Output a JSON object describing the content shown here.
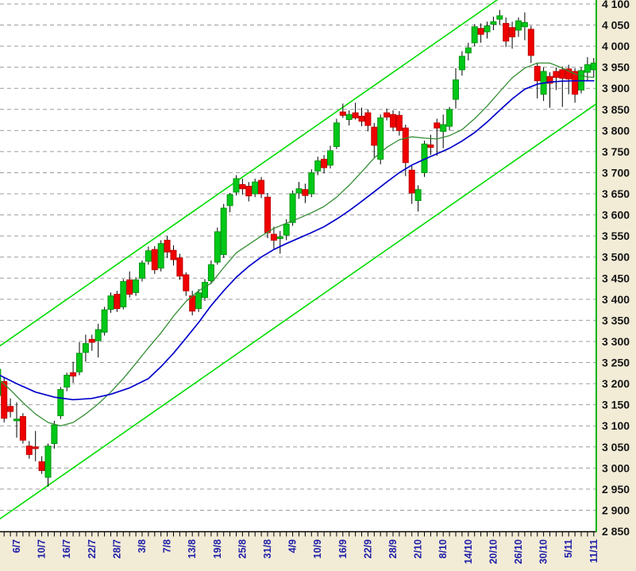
{
  "chart_data": {
    "type": "candlestick",
    "title": "",
    "legend": false,
    "grid": true,
    "y_axis": {
      "min": 2850,
      "max": 4100,
      "tick_step": 50,
      "label_format": "space_thousands",
      "side": "right"
    },
    "x_axis": {
      "labels": [
        "6/7",
        "10/7",
        "16/7",
        "22/7",
        "28/7",
        "3/8",
        "7/8",
        "13/8",
        "19/8",
        "25/8",
        "31/8",
        "4/9",
        "10/9",
        "16/9",
        "22/9",
        "28/9",
        "2/10",
        "8/10",
        "14/10",
        "20/10",
        "26/10",
        "30/10",
        "5/11",
        "11/11"
      ],
      "first_label_candle_index": 3,
      "label_every_n_candles": 4,
      "orientation": "vertical"
    },
    "candles_columns": [
      "open",
      "high",
      "low",
      "close"
    ],
    "candles": [
      [
        3172,
        3240,
        3160,
        3234
      ],
      [
        3205,
        3215,
        3108,
        3118
      ],
      [
        3146,
        3165,
        3120,
        3134
      ],
      [
        3112,
        3156,
        3072,
        3116
      ],
      [
        3122,
        3130,
        3058,
        3066
      ],
      [
        3052,
        3064,
        3022,
        3032
      ],
      [
        3050,
        3088,
        3016,
        3046
      ],
      [
        3015,
        3028,
        2986,
        2994
      ],
      [
        2978,
        3058,
        2956,
        3052
      ],
      [
        3058,
        3112,
        3046,
        3102
      ],
      [
        3124,
        3192,
        3116,
        3186
      ],
      [
        3192,
        3226,
        3182,
        3220
      ],
      [
        3226,
        3252,
        3202,
        3218
      ],
      [
        3228,
        3298,
        3220,
        3272
      ],
      [
        3274,
        3316,
        3252,
        3295
      ],
      [
        3305,
        3316,
        3278,
        3298
      ],
      [
        3302,
        3342,
        3262,
        3328
      ],
      [
        3322,
        3382,
        3314,
        3375
      ],
      [
        3376,
        3416,
        3368,
        3408
      ],
      [
        3412,
        3420,
        3370,
        3378
      ],
      [
        3382,
        3448,
        3376,
        3442
      ],
      [
        3446,
        3466,
        3404,
        3412
      ],
      [
        3416,
        3452,
        3408,
        3446
      ],
      [
        3450,
        3492,
        3442,
        3486
      ],
      [
        3490,
        3525,
        3482,
        3515
      ],
      [
        3518,
        3526,
        3460,
        3470
      ],
      [
        3474,
        3540,
        3466,
        3532
      ],
      [
        3540,
        3550,
        3498,
        3512
      ],
      [
        3516,
        3528,
        3480,
        3494
      ],
      [
        3498,
        3508,
        3446,
        3455
      ],
      [
        3458,
        3464,
        3408,
        3420
      ],
      [
        3408,
        3420,
        3362,
        3372
      ],
      [
        3378,
        3424,
        3370,
        3415
      ],
      [
        3404,
        3448,
        3396,
        3440
      ],
      [
        3444,
        3492,
        3436,
        3482
      ],
      [
        3488,
        3570,
        3482,
        3560
      ],
      [
        3506,
        3626,
        3498,
        3616
      ],
      [
        3622,
        3652,
        3606,
        3648
      ],
      [
        3654,
        3694,
        3646,
        3686
      ],
      [
        3672,
        3686,
        3648,
        3662
      ],
      [
        3668,
        3678,
        3632,
        3645
      ],
      [
        3650,
        3686,
        3642,
        3678
      ],
      [
        3682,
        3690,
        3640,
        3650
      ],
      [
        3642,
        3652,
        3545,
        3558
      ],
      [
        3554,
        3572,
        3520,
        3540
      ],
      [
        3544,
        3562,
        3508,
        3548
      ],
      [
        3552,
        3590,
        3540,
        3578
      ],
      [
        3582,
        3658,
        3574,
        3650
      ],
      [
        3652,
        3678,
        3638,
        3662
      ],
      [
        3660,
        3674,
        3628,
        3646
      ],
      [
        3650,
        3708,
        3642,
        3700
      ],
      [
        3704,
        3738,
        3694,
        3728
      ],
      [
        3732,
        3742,
        3698,
        3712
      ],
      [
        3718,
        3764,
        3710,
        3752
      ],
      [
        3762,
        3828,
        3756,
        3818
      ],
      [
        3844,
        3864,
        3830,
        3836
      ],
      [
        3826,
        3848,
        3812,
        3838
      ],
      [
        3842,
        3866,
        3826,
        3830
      ],
      [
        3834,
        3854,
        3810,
        3822
      ],
      [
        3842,
        3850,
        3798,
        3812
      ],
      [
        3808,
        3818,
        3736,
        3765
      ],
      [
        3732,
        3838,
        3720,
        3830
      ],
      [
        3842,
        3852,
        3824,
        3832
      ],
      [
        3838,
        3848,
        3798,
        3808
      ],
      [
        3836,
        3846,
        3788,
        3800
      ],
      [
        3806,
        3814,
        3692,
        3724
      ],
      [
        3706,
        3716,
        3626,
        3652
      ],
      [
        3634,
        3670,
        3608,
        3660
      ],
      [
        3700,
        3776,
        3690,
        3768
      ],
      [
        3766,
        3790,
        3742,
        3760
      ],
      [
        3818,
        3828,
        3740,
        3806
      ],
      [
        3798,
        3838,
        3758,
        3814
      ],
      [
        3810,
        3856,
        3800,
        3850
      ],
      [
        3874,
        3948,
        3852,
        3920
      ],
      [
        3944,
        3988,
        3930,
        3976
      ],
      [
        3984,
        4008,
        3966,
        3996
      ],
      [
        4008,
        4052,
        4000,
        4046
      ],
      [
        4042,
        4054,
        4008,
        4028
      ],
      [
        4034,
        4058,
        4018,
        4048
      ],
      [
        4052,
        4070,
        4038,
        4058
      ],
      [
        4064,
        4086,
        4050,
        4072
      ],
      [
        4054,
        4068,
        3998,
        4012
      ],
      [
        4044,
        4058,
        3994,
        4022
      ],
      [
        4038,
        4068,
        4022,
        4060
      ],
      [
        4046,
        4080,
        4014,
        4056
      ],
      [
        4040,
        4048,
        3960,
        3978
      ],
      [
        3952,
        3960,
        3876,
        3918
      ],
      [
        3886,
        3950,
        3870,
        3940
      ],
      [
        3928,
        3938,
        3854,
        3912
      ],
      [
        3940,
        3950,
        3896,
        3926
      ],
      [
        3944,
        3952,
        3856,
        3924
      ],
      [
        3946,
        3956,
        3886,
        3922
      ],
      [
        3940,
        3948,
        3866,
        3886
      ],
      [
        3896,
        3950,
        3888,
        3942
      ],
      [
        3938,
        3974,
        3918,
        3956
      ],
      [
        3944,
        3972,
        3926,
        3960
      ]
    ],
    "overlays": {
      "ma_fast": {
        "name": "moving-average-fast",
        "color": "#338e33",
        "points": [
          [
            0,
            3212
          ],
          [
            2,
            3185
          ],
          [
            4,
            3155
          ],
          [
            6,
            3128
          ],
          [
            8,
            3108
          ],
          [
            10,
            3100
          ],
          [
            12,
            3108
          ],
          [
            14,
            3128
          ],
          [
            16,
            3152
          ],
          [
            18,
            3180
          ],
          [
            20,
            3212
          ],
          [
            22,
            3248
          ],
          [
            24,
            3285
          ],
          [
            26,
            3320
          ],
          [
            28,
            3360
          ],
          [
            30,
            3395
          ],
          [
            32,
            3420
          ],
          [
            34,
            3438
          ],
          [
            36,
            3475
          ],
          [
            38,
            3510
          ],
          [
            40,
            3530
          ],
          [
            42,
            3550
          ],
          [
            44,
            3568
          ],
          [
            46,
            3580
          ],
          [
            48,
            3592
          ],
          [
            50,
            3605
          ],
          [
            52,
            3620
          ],
          [
            54,
            3642
          ],
          [
            56,
            3670
          ],
          [
            58,
            3702
          ],
          [
            60,
            3735
          ],
          [
            62,
            3760
          ],
          [
            64,
            3778
          ],
          [
            66,
            3785
          ],
          [
            68,
            3782
          ],
          [
            70,
            3780
          ],
          [
            72,
            3788
          ],
          [
            74,
            3802
          ],
          [
            76,
            3828
          ],
          [
            78,
            3858
          ],
          [
            80,
            3892
          ],
          [
            82,
            3925
          ],
          [
            84,
            3948
          ],
          [
            86,
            3960
          ],
          [
            88,
            3960
          ],
          [
            90,
            3948
          ],
          [
            92,
            3934
          ],
          [
            94,
            3927
          ],
          [
            95,
            3926
          ]
        ]
      },
      "ma_slow": {
        "name": "moving-average-slow",
        "color": "#0000cc",
        "points": [
          [
            0,
            3222
          ],
          [
            3,
            3200
          ],
          [
            6,
            3180
          ],
          [
            9,
            3168
          ],
          [
            12,
            3162
          ],
          [
            15,
            3165
          ],
          [
            18,
            3175
          ],
          [
            21,
            3190
          ],
          [
            24,
            3212
          ],
          [
            26,
            3240
          ],
          [
            28,
            3272
          ],
          [
            30,
            3308
          ],
          [
            32,
            3345
          ],
          [
            34,
            3385
          ],
          [
            36,
            3420
          ],
          [
            38,
            3452
          ],
          [
            40,
            3478
          ],
          [
            42,
            3500
          ],
          [
            44,
            3518
          ],
          [
            46,
            3532
          ],
          [
            48,
            3545
          ],
          [
            50,
            3558
          ],
          [
            52,
            3572
          ],
          [
            54,
            3590
          ],
          [
            56,
            3610
          ],
          [
            58,
            3632
          ],
          [
            60,
            3655
          ],
          [
            62,
            3678
          ],
          [
            64,
            3700
          ],
          [
            66,
            3718
          ],
          [
            68,
            3732
          ],
          [
            70,
            3745
          ],
          [
            72,
            3758
          ],
          [
            74,
            3775
          ],
          [
            76,
            3795
          ],
          [
            78,
            3820
          ],
          [
            80,
            3848
          ],
          [
            82,
            3875
          ],
          [
            84,
            3898
          ],
          [
            86,
            3910
          ],
          [
            88,
            3915
          ],
          [
            90,
            3917
          ],
          [
            92,
            3918
          ],
          [
            95,
            3918
          ]
        ]
      },
      "channel_upper": {
        "name": "trend-channel-upper",
        "color": "#00dc00",
        "from": [
          0,
          3286
        ],
        "to": [
          95,
          4269
        ]
      },
      "channel_lower": {
        "name": "trend-channel-lower",
        "color": "#00dc00",
        "from": [
          0,
          2876
        ],
        "to": [
          95,
          3859
        ]
      }
    }
  },
  "colors": {
    "background": "#f2ebd6",
    "plot_background": "#ffffff",
    "grid": "#9c9c9c",
    "axis_line": "#000000",
    "tick": "#000000",
    "plot_right_border": "#00b400",
    "candle_up_fill": "#00c818",
    "candle_up_stroke": "#009610",
    "candle_down_fill": "#f00000",
    "candle_down_stroke": "#c00000",
    "wick": "#000000",
    "x_label": "#2020a8",
    "y_label": "#151515"
  }
}
